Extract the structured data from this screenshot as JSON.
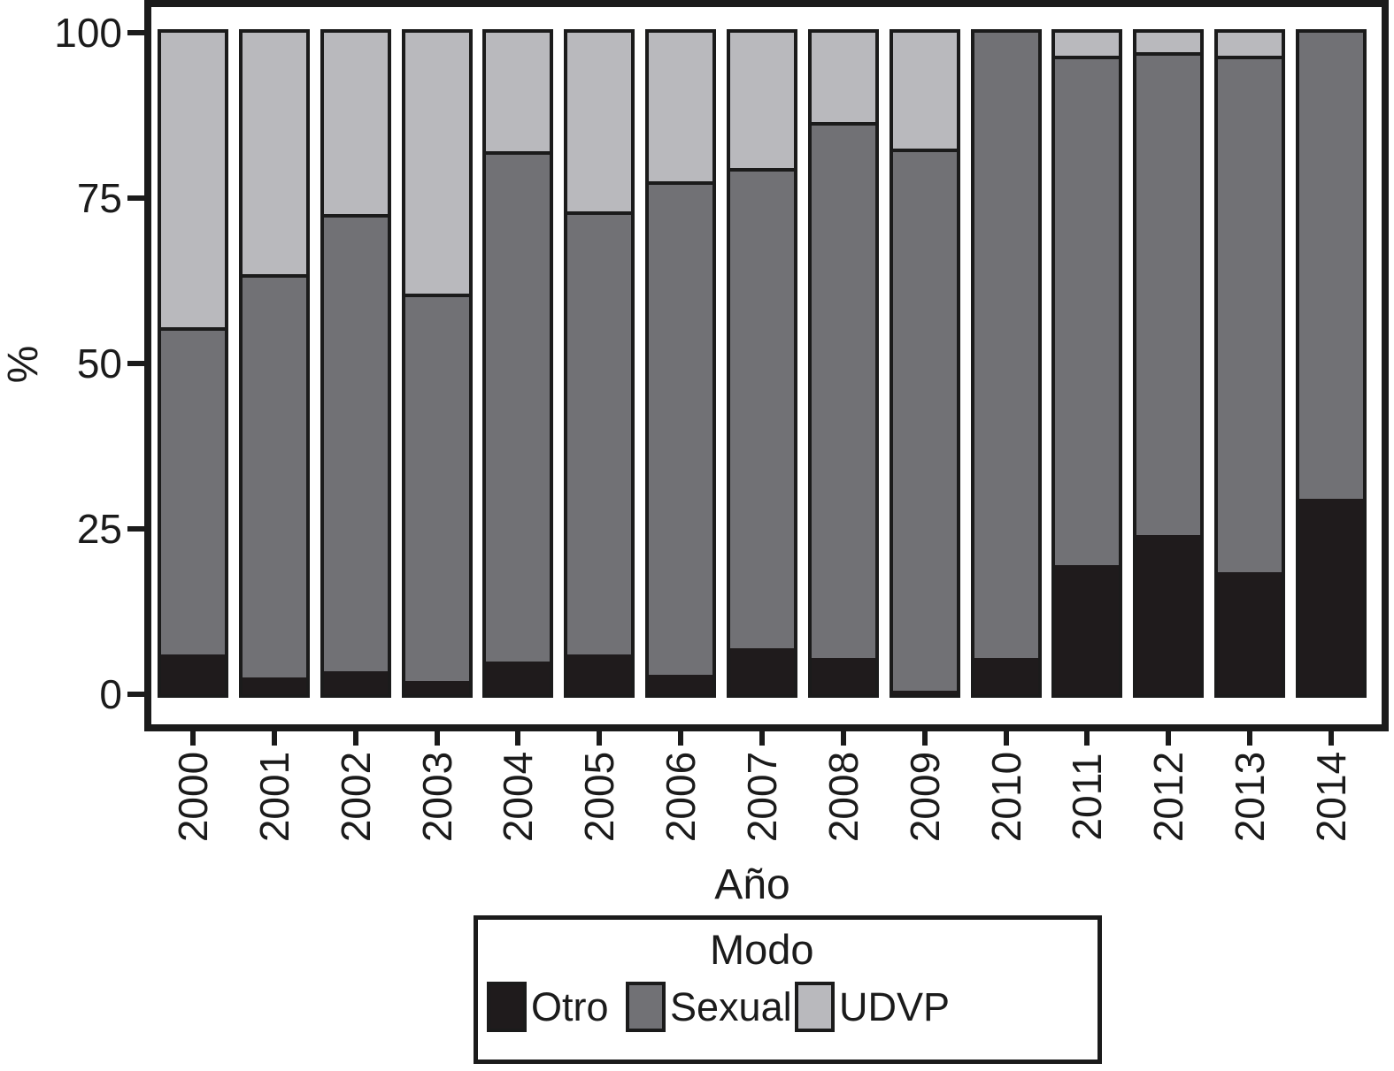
{
  "chart_data": {
    "type": "bar",
    "stacked": true,
    "orientation": "vertical",
    "title": "",
    "xlabel": "Año",
    "ylabel": "%",
    "ylim": [
      0,
      100
    ],
    "yticks": [
      0,
      25,
      50,
      75,
      100
    ],
    "grid": false,
    "legend_position": "bottom",
    "categories": [
      "2000",
      "2001",
      "2002",
      "2003",
      "2004",
      "2005",
      "2006",
      "2007",
      "2008",
      "2009",
      "2010",
      "2011",
      "2012",
      "2013",
      "2014"
    ],
    "series": [
      {
        "name": "Otro",
        "color": "#1f1b1c",
        "values": [
          6,
          2.5,
          3.5,
          2,
          5,
          6,
          3,
          7,
          5.5,
          0.5,
          5.5,
          19.5,
          24,
          18.5,
          29.5
        ]
      },
      {
        "name": "Sexual",
        "color": "#717175",
        "values": [
          49,
          60.5,
          68.5,
          58,
          76.5,
          66.5,
          74,
          72,
          80.5,
          81.5,
          94.5,
          76.5,
          72.5,
          77.5,
          70.5
        ]
      },
      {
        "name": "UDVP",
        "color": "#b9b9bd",
        "values": [
          45,
          37,
          28,
          40,
          18.5,
          27.5,
          23,
          21,
          14,
          18,
          0,
          4,
          3.5,
          4,
          0
        ]
      }
    ]
  },
  "axes": {
    "x_title": "Año",
    "y_title": "%",
    "y_tick_labels": [
      "0",
      "25",
      "50",
      "75",
      "100"
    ],
    "x_tick_labels": [
      "2000",
      "2001",
      "2002",
      "2003",
      "2004",
      "2005",
      "2006",
      "2007",
      "2008",
      "2009",
      "2010",
      "2011",
      "2012",
      "2013",
      "2014"
    ]
  },
  "legend": {
    "title": "Modo",
    "entries": [
      {
        "label": "Otro",
        "color": "#1f1b1c"
      },
      {
        "label": "Sexual",
        "color": "#717175"
      },
      {
        "label": "UDVP",
        "color": "#b9b9bd"
      }
    ]
  },
  "colors": {
    "foreground": "#1b1b1b",
    "background": "#ffffff"
  }
}
